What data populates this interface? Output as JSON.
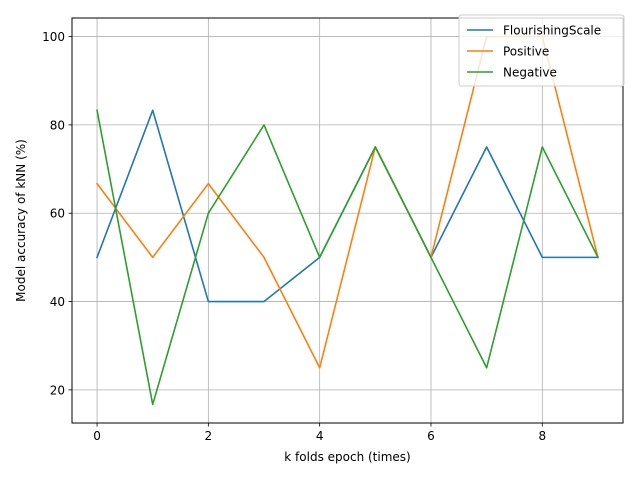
{
  "chart_data": {
    "type": "line",
    "title": "",
    "xlabel": "k folds epoch (times)",
    "ylabel": "Model accuracy of kNN (%)",
    "x": [
      0,
      1,
      2,
      3,
      4,
      5,
      6,
      7,
      8,
      9
    ],
    "xlim": [
      -0.45,
      9.45
    ],
    "ylim": [
      12.5,
      104.2
    ],
    "xticks": [
      0,
      2,
      4,
      6,
      8
    ],
    "yticks": [
      20,
      40,
      60,
      80,
      100
    ],
    "grid": true,
    "legend_position": "top-right",
    "series": [
      {
        "name": "FlourishingScale",
        "color": "#1f77b4",
        "values": [
          50,
          83.3,
          40,
          40,
          50,
          75,
          50,
          75,
          50,
          50
        ]
      },
      {
        "name": "Positive",
        "color": "#ff7f0e",
        "values": [
          66.7,
          50,
          66.7,
          50,
          25,
          75,
          50,
          100,
          100,
          50
        ]
      },
      {
        "name": "Negative",
        "color": "#2ca02c",
        "values": [
          83.3,
          16.7,
          60,
          80,
          50,
          75,
          50,
          25,
          75,
          50
        ]
      }
    ]
  }
}
